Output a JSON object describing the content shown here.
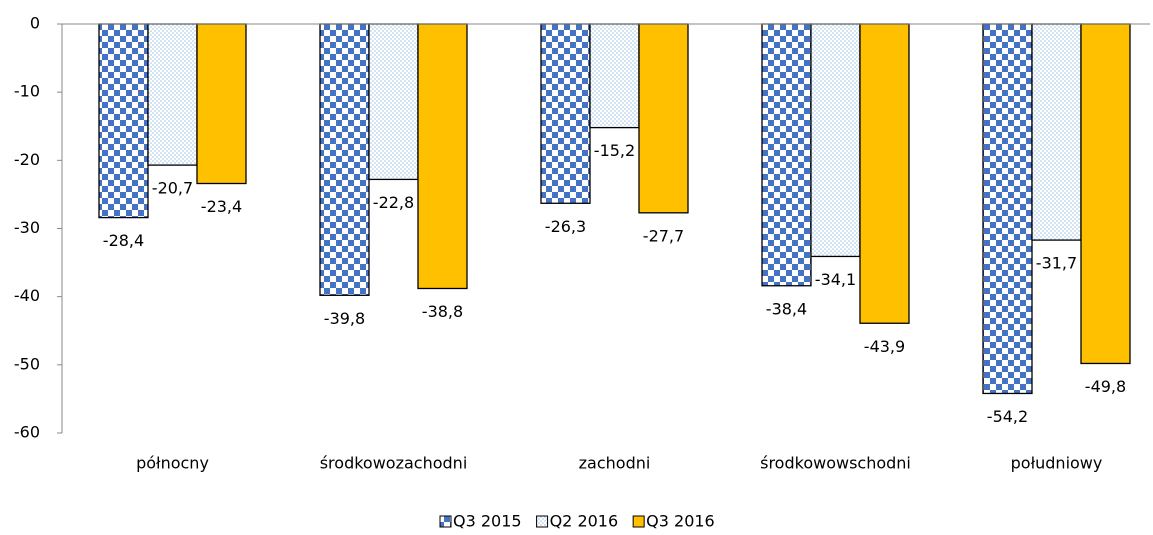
{
  "chart_data": {
    "type": "bar",
    "categories": [
      "północny",
      "środkowozachodni",
      "zachodni",
      "środkowowschodni",
      "południowy"
    ],
    "series": [
      {
        "name": "Q3 2015",
        "color": "#4472c4",
        "pattern": "checker",
        "values": [
          -28.4,
          -39.8,
          -26.3,
          -38.4,
          -54.2
        ],
        "value_labels": [
          "-28,4",
          "-39,8",
          "-26,3",
          "-38,4",
          "-54,2"
        ]
      },
      {
        "name": "Q2 2016",
        "color": "#9dc3e6",
        "pattern": "dots",
        "values": [
          -20.7,
          -22.8,
          -15.2,
          -34.1,
          -31.7
        ],
        "value_labels": [
          "-20,7",
          "-22,8",
          "-15,2",
          "-34,1",
          "-31,7"
        ]
      },
      {
        "name": "Q3 2016",
        "color": "#ffc000",
        "pattern": "solid",
        "values": [
          -23.4,
          -38.8,
          -27.7,
          -43.9,
          -49.8
        ],
        "value_labels": [
          "-23,4",
          "-38,8",
          "-27,7",
          "-43,9",
          "-49,8"
        ]
      }
    ],
    "ylim": [
      -60,
      0
    ],
    "yticks": [
      0,
      -10,
      -20,
      -30,
      -40,
      -50,
      -60
    ],
    "legend": "bottom"
  }
}
